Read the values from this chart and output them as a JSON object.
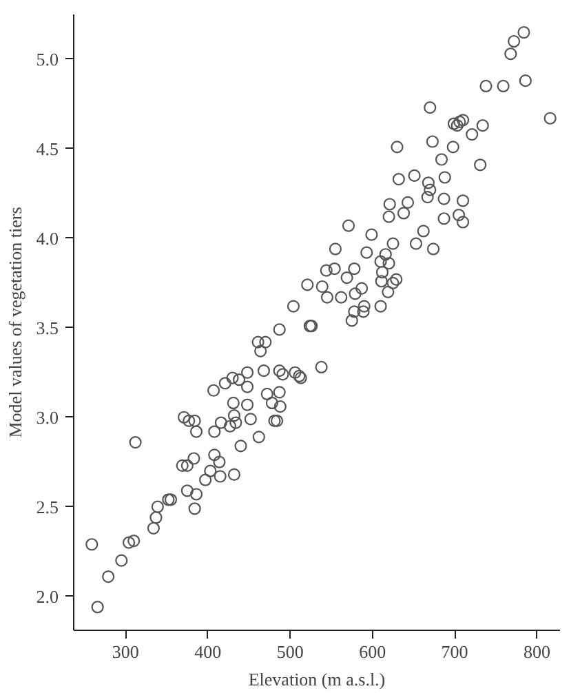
{
  "chart_data": {
    "type": "scatter",
    "xlabel": "Elevation (m a.s.l.)",
    "ylabel": "Model values of vegetation tiers",
    "xlim": [
      237,
      828
    ],
    "ylim": [
      1.81,
      5.25
    ],
    "xticks": [
      300,
      400,
      500,
      600,
      700,
      800
    ],
    "yticks": [
      {
        "value": 2,
        "label": "2.0"
      },
      {
        "value": 2.5,
        "label": "2.5"
      },
      {
        "value": 3,
        "label": "3.0"
      },
      {
        "value": 3.5,
        "label": "3.5"
      },
      {
        "value": 4,
        "label": "4.0"
      },
      {
        "value": 4.5,
        "label": "4.5"
      },
      {
        "value": 5,
        "label": "5.0"
      }
    ],
    "grid": false,
    "marker": "circle",
    "series": [
      {
        "color": "#555555",
        "x": [
          259,
          266,
          279,
          295,
          304,
          310,
          312,
          334,
          337,
          339,
          352,
          355,
          371,
          369,
          375,
          375,
          377,
          384,
          383,
          386,
          384,
          386,
          397,
          403,
          407,
          408,
          408,
          414,
          415,
          416,
          421,
          427,
          430,
          432,
          431,
          432,
          434,
          438,
          440,
          448,
          448,
          448,
          452,
          462,
          461,
          464,
          470,
          468,
          472,
          478,
          481,
          484,
          487,
          488,
          487,
          491,
          487,
          504,
          506,
          511,
          513,
          521,
          524,
          526,
          538,
          539,
          545,
          544,
          554,
          555,
          562,
          569,
          571,
          575,
          578,
          578,
          579,
          587,
          589,
          590,
          593,
          599,
          610,
          610,
          612,
          611,
          616,
          619,
          620,
          621,
          620,
          625,
          629,
          625,
          630,
          632,
          638,
          643,
          651,
          653,
          662,
          667,
          668,
          670,
          670,
          673,
          674,
          684,
          688,
          687,
          687,
          698,
          699,
          703,
          706,
          710,
          705,
          710,
          710,
          721,
          731,
          734,
          738,
          759,
          768,
          772,
          784,
          786,
          816
        ],
        "values": [
          2.29,
          1.94,
          2.11,
          2.2,
          2.3,
          2.31,
          2.86,
          2.38,
          2.44,
          2.5,
          2.54,
          2.54,
          3.0,
          2.73,
          2.73,
          2.59,
          2.98,
          2.98,
          2.77,
          2.57,
          2.49,
          2.92,
          2.65,
          2.7,
          3.15,
          2.92,
          2.79,
          2.75,
          2.67,
          2.97,
          3.19,
          2.95,
          3.22,
          2.68,
          3.08,
          3.01,
          2.97,
          3.21,
          2.84,
          3.17,
          3.25,
          3.07,
          2.99,
          2.89,
          3.42,
          3.37,
          3.42,
          3.26,
          3.13,
          3.08,
          2.98,
          2.98,
          3.14,
          3.06,
          3.26,
          3.24,
          3.49,
          3.62,
          3.25,
          3.23,
          3.22,
          3.74,
          3.51,
          3.51,
          3.28,
          3.73,
          3.67,
          3.82,
          3.83,
          3.94,
          3.67,
          3.78,
          4.07,
          3.54,
          3.59,
          3.83,
          3.69,
          3.72,
          3.59,
          3.62,
          3.92,
          4.02,
          3.62,
          3.87,
          3.81,
          3.76,
          3.91,
          3.7,
          4.12,
          4.19,
          3.86,
          3.75,
          3.77,
          3.97,
          4.51,
          4.33,
          4.14,
          4.2,
          4.35,
          3.97,
          4.04,
          4.23,
          4.31,
          4.27,
          4.73,
          4.54,
          3.94,
          4.44,
          4.34,
          4.22,
          4.11,
          4.51,
          4.64,
          4.63,
          4.65,
          4.66,
          4.13,
          4.21,
          4.09,
          4.58,
          4.41,
          4.63,
          4.85,
          4.85,
          5.03,
          5.1,
          5.15,
          4.88,
          4.67
        ]
      }
    ]
  }
}
